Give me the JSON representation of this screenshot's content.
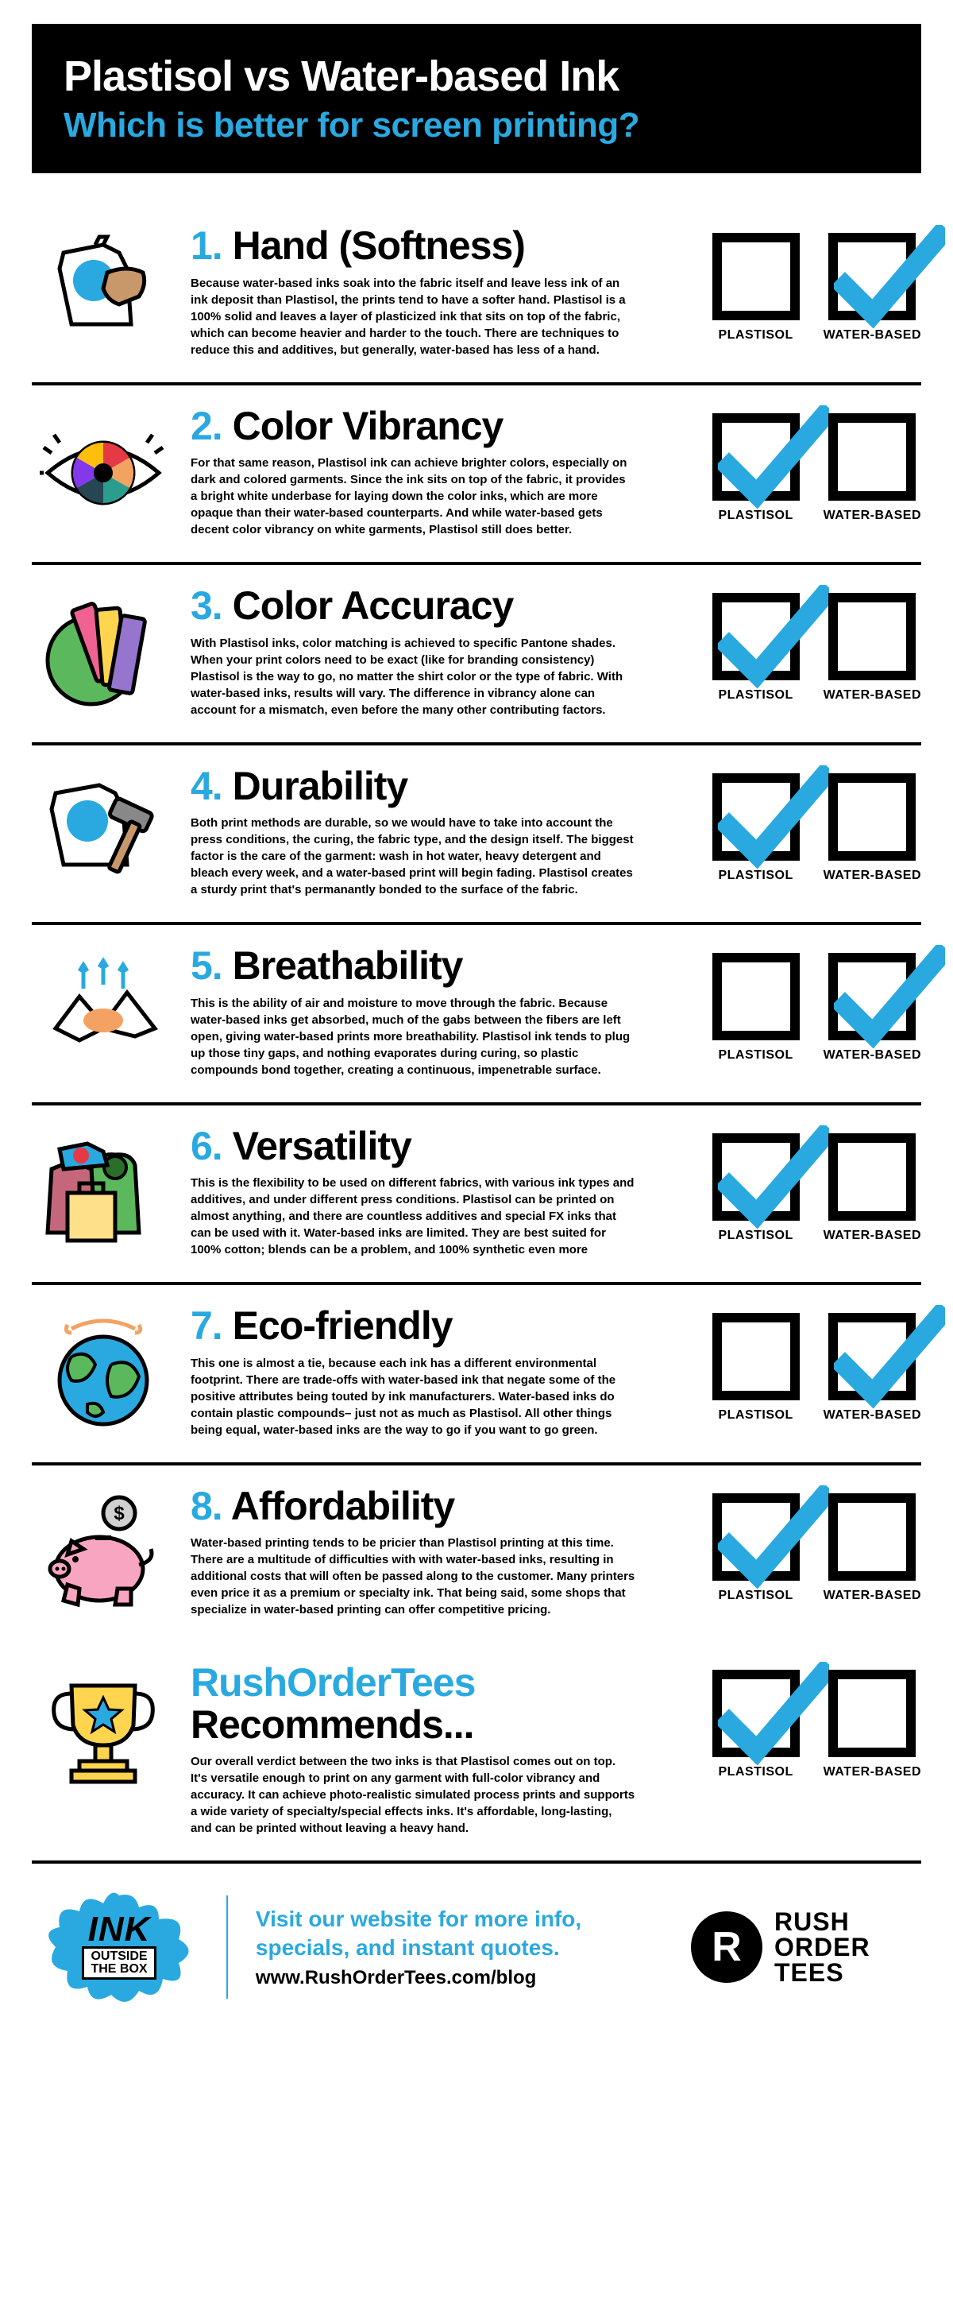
{
  "colors": {
    "accent": "#29a9e0",
    "black": "#000000",
    "white": "#ffffff"
  },
  "header": {
    "title": "Plastisol vs Water-based Ink",
    "subtitle": "Which is better for screen printing?"
  },
  "check_labels": {
    "left": "PLASTISOL",
    "right": "WATER-BASED"
  },
  "sections": [
    {
      "num": "1.",
      "title": "Hand (Softness)",
      "body": "Because water-based inks soak into the fabric itself and leave less ink of an ink deposit than Plastisol, the prints tend to have a softer hand. Plastisol is a 100% solid and leaves a layer of plasticized ink that sits on top of the fabric, which can become heavier and harder to the touch. There are techniques to reduce this and additives, but generally, water-based has less of a hand.",
      "winner": "right",
      "icon": "hand"
    },
    {
      "num": "2.",
      "title": "Color Vibrancy",
      "body": "For that same reason, Plastisol ink can achieve brighter colors, especially on dark and colored garments. Since the ink sits on top of the fabric, it provides a bright white underbase for laying down the color inks, which are more opaque than their water-based counterparts. And while water-based gets decent color vibrancy on white garments, Plastisol still does better.",
      "winner": "left",
      "icon": "eye"
    },
    {
      "num": "3.",
      "title": "Color Accuracy",
      "body": "With Plastisol inks, color matching is achieved to specific Pantone shades. When your print colors need to be exact (like for branding consistency) Plastisol is the way to go, no matter the shirt color or the type of fabric. With water-based inks, results will vary. The difference in vibrancy alone can account for a mismatch, even before the many other contributing factors.",
      "winner": "left",
      "icon": "swatch"
    },
    {
      "num": "4.",
      "title": "Durability",
      "body": "Both print methods are durable, so we would have to take into account the press conditions, the curing, the fabric type, and the design itself. The biggest factor is the care of the garment: wash in hot water, heavy detergent and bleach every week, and a water-based print will begin fading. Plastisol creates a sturdy print that's permanantly bonded to the surface of the fabric.",
      "winner": "left",
      "icon": "hammer"
    },
    {
      "num": "5.",
      "title": "Breathability",
      "body": "This is the ability of air and moisture to move through the fabric. Because water-based inks get absorbed, much of the gabs between the fibers are left open, giving water-based prints more breathability. Plastisol ink tends to plug up those tiny gaps, and nothing evaporates during curing, so plastic compounds bond together, creating a continuous, impenetrable surface.",
      "winner": "right",
      "icon": "breath"
    },
    {
      "num": "6.",
      "title": "Versatility",
      "body": "This is the flexibility to be used on different fabrics, with various ink types and additives, and under different press conditions. Plastisol can be printed on almost anything, and there are countless additives and special FX inks that can be used with it. Water-based inks are limited. They are best suited for 100% cotton; blends can be a problem, and 100% synthetic even more",
      "winner": "left",
      "icon": "clothes"
    },
    {
      "num": "7.",
      "title": "Eco-friendly",
      "body": "This one is almost a tie, because each ink has a different environmental footprint. There are trade-offs with water-based ink that negate some of the positive attributes being touted by ink manufacturers. Water-based inks do contain plastic compounds– just not as much as Plastisol. All other things being equal, water-based inks are the way to go if you want to go green.",
      "winner": "right",
      "icon": "earth"
    },
    {
      "num": "8.",
      "title": "Affordability",
      "body": "Water-based printing tends to be pricier than Plastisol printing at this time. There are a multitude of difficulties with with water-based inks, resulting in additional costs that will often be passed along to the customer. Many printers even price it as a premium or specialty ink. That being said, some shops that specialize in water-based printing can offer competitive pricing.",
      "winner": "left",
      "icon": "piggy"
    }
  ],
  "recommend": {
    "brand": "RushOrderTees",
    "title": "Recommends...",
    "body": "Our overall verdict between the two inks is that Plastisol comes out on top. It's versatile enough to print on any garment with full-color vibrancy and accuracy. It can achieve photo-realistic simulated process prints and supports a wide variety of specialty/special effects inks. It's affordable, long-lasting, and can be printed without leaving a heavy hand.",
    "winner": "left",
    "icon": "trophy"
  },
  "footer": {
    "ink_line1": "INK",
    "ink_line2": "OUTSIDE",
    "ink_line3": "THE BOX",
    "cta_line": "Visit our website for more info, specials, and instant quotes.",
    "url": "www.RushOrderTees.com/blog",
    "logo_letter": "R",
    "logo_line1": "RUSH",
    "logo_line2": "ORDER",
    "logo_line3": "TEES"
  }
}
